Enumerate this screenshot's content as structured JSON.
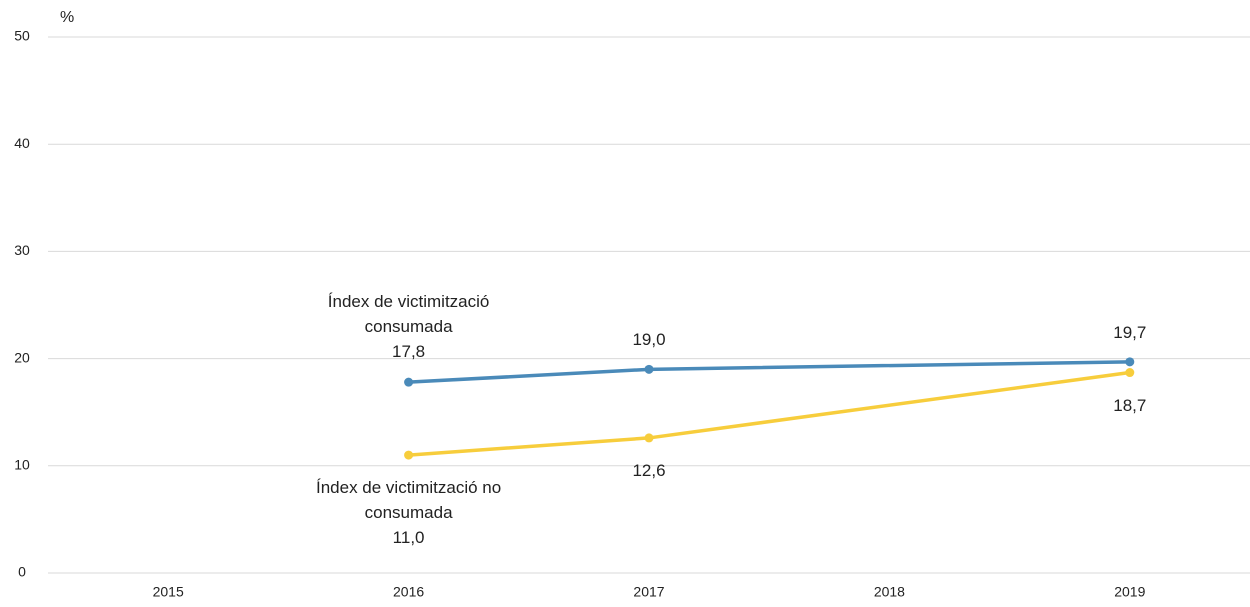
{
  "chart_data": {
    "type": "line",
    "ylabel": "%",
    "x": [
      2016,
      2017,
      2019
    ],
    "xlim": [
      2014.5,
      2019.5
    ],
    "xticks": [
      2015,
      2016,
      2017,
      2018,
      2019
    ],
    "ylim": [
      0,
      50
    ],
    "yticks": [
      0,
      10,
      20,
      30,
      40,
      50
    ],
    "grid": true,
    "series": [
      {
        "name": "Índex de victimització consumada",
        "color": "#4a8ab9",
        "values": [
          17.8,
          19.0,
          19.7
        ],
        "value_labels": [
          "17,8",
          "19,0",
          "19,7"
        ]
      },
      {
        "name": "Índex de victimització no consumada",
        "color": "#f7cd3c",
        "values": [
          11.0,
          12.6,
          18.7
        ],
        "value_labels": [
          "11,0",
          "12,6",
          "18,7"
        ]
      }
    ]
  }
}
